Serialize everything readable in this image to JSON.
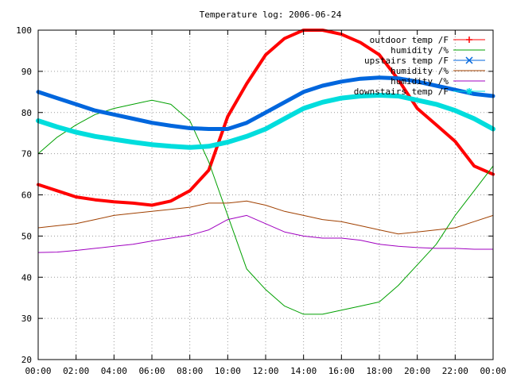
{
  "chart_data": {
    "type": "line",
    "title": "Temperature log: 2006-06-24",
    "xlabel": "",
    "ylabel": "",
    "xlim": [
      "00:00",
      "24:00"
    ],
    "ylim": [
      20,
      100
    ],
    "grid": true,
    "legend_position": "top-right",
    "x_ticks": [
      "00:00",
      "02:00",
      "04:00",
      "06:00",
      "08:00",
      "10:00",
      "12:00",
      "14:00",
      "16:00",
      "18:00",
      "20:00",
      "22:00",
      "00:00"
    ],
    "y_ticks": [
      "20",
      "30",
      "40",
      "50",
      "60",
      "70",
      "80",
      "90",
      "100"
    ],
    "x": [
      "00:00",
      "01:00",
      "02:00",
      "03:00",
      "04:00",
      "05:00",
      "06:00",
      "07:00",
      "08:00",
      "09:00",
      "10:00",
      "11:00",
      "12:00",
      "13:00",
      "14:00",
      "15:00",
      "16:00",
      "17:00",
      "18:00",
      "19:00",
      "20:00",
      "21:00",
      "22:00",
      "23:00",
      "00:00"
    ],
    "series": [
      {
        "name": "outdoor temp /F",
        "color": "#ff0000",
        "marker": "plus",
        "width": 4,
        "values": [
          62.5,
          61,
          59.5,
          58.8,
          58.3,
          58,
          57.5,
          58.5,
          61,
          66,
          79,
          87,
          94,
          98,
          100,
          100,
          99,
          97,
          94,
          88,
          81,
          77,
          73,
          67,
          65
        ]
      },
      {
        "name": "humidity /%",
        "color": "#00a000",
        "width": 1,
        "values": [
          70,
          74,
          77,
          79.5,
          81,
          82,
          83,
          82,
          78,
          68,
          55,
          42,
          37,
          33,
          31,
          31,
          32,
          33,
          34,
          38,
          43,
          48,
          55,
          61,
          67
        ]
      },
      {
        "name": "upstairs temp /F",
        "color": "#0066dd",
        "marker": "x",
        "width": 5,
        "values": [
          85,
          83.5,
          82,
          80.5,
          79.5,
          78.5,
          77.5,
          76.8,
          76.2,
          76,
          76,
          77.5,
          80,
          82.5,
          85,
          86.5,
          87.5,
          88.2,
          88.5,
          88.3,
          87.5,
          86.5,
          85.5,
          84.5,
          84
        ]
      },
      {
        "name": "humidity /%",
        "color": "#a04000",
        "width": 1,
        "values": [
          52,
          52.5,
          53,
          54,
          55,
          55.5,
          56,
          56.5,
          57,
          58,
          58,
          58.5,
          57.5,
          56,
          55,
          54,
          53.5,
          52.5,
          51.5,
          50.5,
          51,
          51.5,
          52,
          53.5,
          55
        ]
      },
      {
        "name": "humidity /%",
        "color": "#a000c0",
        "width": 1,
        "values": [
          46,
          46.1,
          46.5,
          47,
          47.5,
          48,
          48.8,
          49.5,
          50.2,
          51.5,
          54,
          55,
          53,
          51,
          50,
          49.5,
          49.5,
          49,
          48,
          47.5,
          47.2,
          47,
          47,
          46.8,
          46.8
        ]
      },
      {
        "name": "downstairs temp /F",
        "color": "#00dddd",
        "marker": "star",
        "width": 6,
        "values": [
          78,
          76.5,
          75.2,
          74.2,
          73.5,
          72.8,
          72.2,
          71.8,
          71.5,
          71.8,
          72.8,
          74.2,
          76,
          78.5,
          81,
          82.5,
          83.5,
          84,
          84.2,
          84,
          83,
          82,
          80.5,
          78.5,
          76
        ]
      }
    ]
  }
}
